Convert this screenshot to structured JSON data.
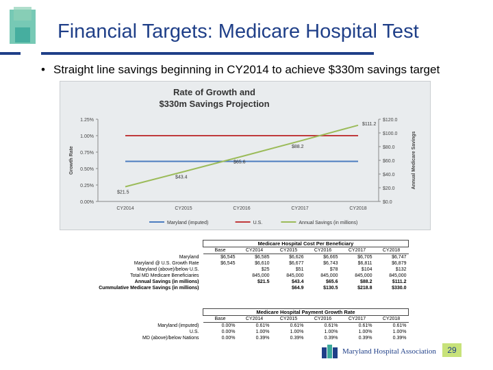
{
  "slide": {
    "title": "Financial Targets: Medicare Hospital Test",
    "bullet": "Straight line savings beginning in CY2014 to achieve $330m savings target",
    "page_number": "29",
    "footer_org": "Maryland Hospital Association",
    "colors": {
      "title": "#1f3f88",
      "accent_teal": "#3aa89a",
      "accent_green": "#7cc08a",
      "page_badge": "#c7e27a"
    }
  },
  "chart_data": {
    "type": "line",
    "title": "Rate of Growth and",
    "subtitle": "$330m Savings Projection",
    "xlabel": "",
    "ylabel": "Growth Rate",
    "y2label": "Annual Medicare Savings",
    "categories": [
      "CY2014",
      "CY2015",
      "CY2016",
      "CY2017",
      "CY2018"
    ],
    "ylim": [
      0,
      1.25
    ],
    "y_ticks": [
      "0.00%",
      "0.25%",
      "0.50%",
      "0.75%",
      "1.00%",
      "1.25%"
    ],
    "y2lim": [
      0,
      120
    ],
    "y2_ticks": [
      "$0.0",
      "$20.0",
      "$40.0",
      "$60.0",
      "$80.0",
      "$100.0",
      "$120.0"
    ],
    "series": [
      {
        "name": "Maryland (imputed)",
        "axis": "left",
        "color": "#4a7bbf",
        "values": [
          0.61,
          0.61,
          0.61,
          0.61,
          0.61
        ]
      },
      {
        "name": "U.S.",
        "axis": "left",
        "color": "#c0393b",
        "values": [
          1.0,
          1.0,
          1.0,
          1.0,
          1.0
        ]
      },
      {
        "name": "Annual Savings (in millions)",
        "axis": "right",
        "color": "#9bbb59",
        "values": [
          21.5,
          43.4,
          65.6,
          88.2,
          111.2
        ],
        "labels": [
          "$21.5",
          "$43.4",
          "$65.6",
          "$88.2",
          "$111.2"
        ]
      }
    ],
    "legend": "bottom"
  },
  "table1": {
    "caption": "Medicare Hospital Cost Per Beneficiary",
    "headers": [
      "Base",
      "CY2014",
      "CY2015",
      "CY2016",
      "CY2017",
      "CY2018"
    ],
    "rows": [
      {
        "label": "Maryland",
        "cells": [
          "$6,545",
          "$6,585",
          "$6,626",
          "$6,665",
          "$6,705",
          "$6,747"
        ]
      },
      {
        "label": "Maryland @ U.S. Growth Rate",
        "cells": [
          "$6,545",
          "$6,610",
          "$6,677",
          "$6,743",
          "$6,811",
          "$6,879"
        ]
      },
      {
        "label": "Maryland (above)/below U.S.",
        "cells": [
          "",
          "$25",
          "$51",
          "$78",
          "$104",
          "$132"
        ]
      },
      {
        "label": "Total MD Medicare Beneficiaries",
        "cells": [
          "",
          "845,000",
          "845,000",
          "845,000",
          "845,000",
          "845,000"
        ]
      },
      {
        "label": "Annual Savings (in millions)",
        "cells": [
          "",
          "$21.5",
          "$43.4",
          "$65.6",
          "$88.2",
          "$111.2"
        ],
        "bold": true
      },
      {
        "label": "Cummulative Medicare Savings (in millions)",
        "cells": [
          "",
          "",
          "$64.9",
          "$130.5",
          "$218.8",
          "$330.0"
        ],
        "bold": true
      }
    ]
  },
  "table2": {
    "caption": "Medicare Hospital Payment Growth Rate",
    "headers": [
      "Base",
      "CY2014",
      "CY2015",
      "CY2016",
      "CY2017",
      "CY2018"
    ],
    "rows": [
      {
        "label": "Maryland (imputed)",
        "cells": [
          "0.00%",
          "0.61%",
          "0.61%",
          "0.61%",
          "0.61%",
          "0.61%"
        ]
      },
      {
        "label": "U.S.",
        "cells": [
          "0.00%",
          "1.00%",
          "1.00%",
          "1.00%",
          "1.00%",
          "1.00%"
        ]
      },
      {
        "label": "MD (above)/below Nations",
        "cells": [
          "0.00%",
          "0.39%",
          "0.39%",
          "0.39%",
          "0.39%",
          "0.39%"
        ]
      }
    ]
  }
}
